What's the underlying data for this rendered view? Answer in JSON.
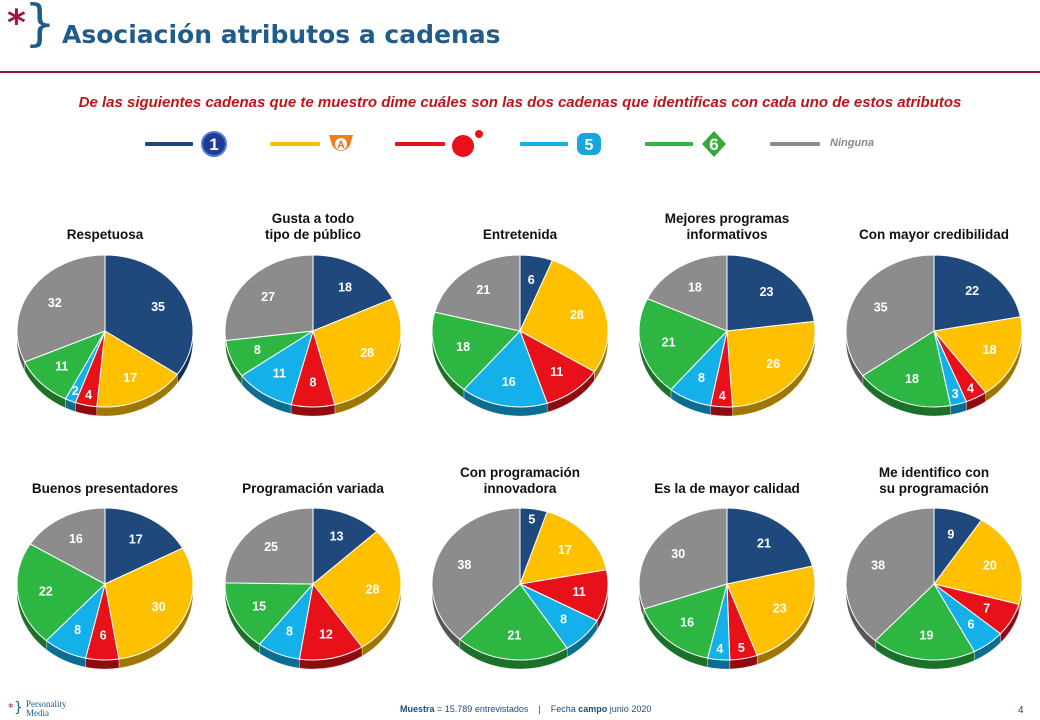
{
  "header": {
    "title": "Asociación atributos a cadenas",
    "logo_star": "*",
    "logo_brace": "}"
  },
  "subtitle": "De las siguientes cadenas que te muestro dime cuáles son las dos cadenas  que identificas con cada uno de estos atributos",
  "legend": [
    {
      "key": "la1",
      "color": "#1f497d",
      "icon": "la1-logo-icon"
    },
    {
      "key": "antena3",
      "color": "#ffc000",
      "icon": "antena3-logo-icon"
    },
    {
      "key": "cuatro",
      "color": "#e8111a",
      "icon": "cuatro-logo-icon"
    },
    {
      "key": "telecinco",
      "color": "#14b0ea",
      "icon": "telecinco-logo-icon"
    },
    {
      "key": "lasexta",
      "color": "#2db742",
      "icon": "lasexta-logo-icon"
    },
    {
      "key": "ninguna",
      "color": "#8c8c8c",
      "label": "Ninguna"
    }
  ],
  "series_colors": [
    "#1f497d",
    "#ffc000",
    "#e8111a",
    "#14b0ea",
    "#2db742",
    "#8c8c8c"
  ],
  "chart_data": [
    {
      "type": "pie",
      "title": "Respetuosa",
      "values": [
        35,
        17,
        4,
        2,
        11,
        32
      ]
    },
    {
      "type": "pie",
      "title": "Gusta a todo\ntipo de público",
      "values": [
        18,
        28,
        8,
        11,
        8,
        27
      ]
    },
    {
      "type": "pie",
      "title": "Entretenida",
      "values": [
        6,
        28,
        11,
        16,
        18,
        21
      ]
    },
    {
      "type": "pie",
      "title": "Mejores programas\ninformativos",
      "values": [
        23,
        26,
        4,
        8,
        21,
        18
      ]
    },
    {
      "type": "pie",
      "title": "Con mayor credibilidad",
      "values": [
        22,
        18,
        4,
        3,
        18,
        35
      ]
    },
    {
      "type": "pie",
      "title": "Buenos presentadores",
      "values": [
        17,
        30,
        6,
        8,
        22,
        16
      ]
    },
    {
      "type": "pie",
      "title": "Programación variada",
      "values": [
        13,
        28,
        12,
        8,
        15,
        25
      ]
    },
    {
      "type": "pie",
      "title": "Con programación\ninnovadora",
      "values": [
        5,
        17,
        11,
        8,
        21,
        38
      ]
    },
    {
      "type": "pie",
      "title": "Es la de mayor calidad",
      "values": [
        21,
        23,
        5,
        4,
        16,
        30
      ]
    },
    {
      "type": "pie",
      "title": "Me identifico con\nsu programación",
      "values": [
        9,
        20,
        7,
        6,
        19,
        38
      ]
    }
  ],
  "footer": {
    "muestra_label": "Muestra",
    "muestra_value": "= 15.789 entrevistados",
    "separator": "|",
    "fecha_label": "Fecha",
    "campo_label": "campo",
    "fecha_value": "junio 2020",
    "page_number": "4",
    "brand_line1": "Personality",
    "brand_line2": "Media"
  }
}
